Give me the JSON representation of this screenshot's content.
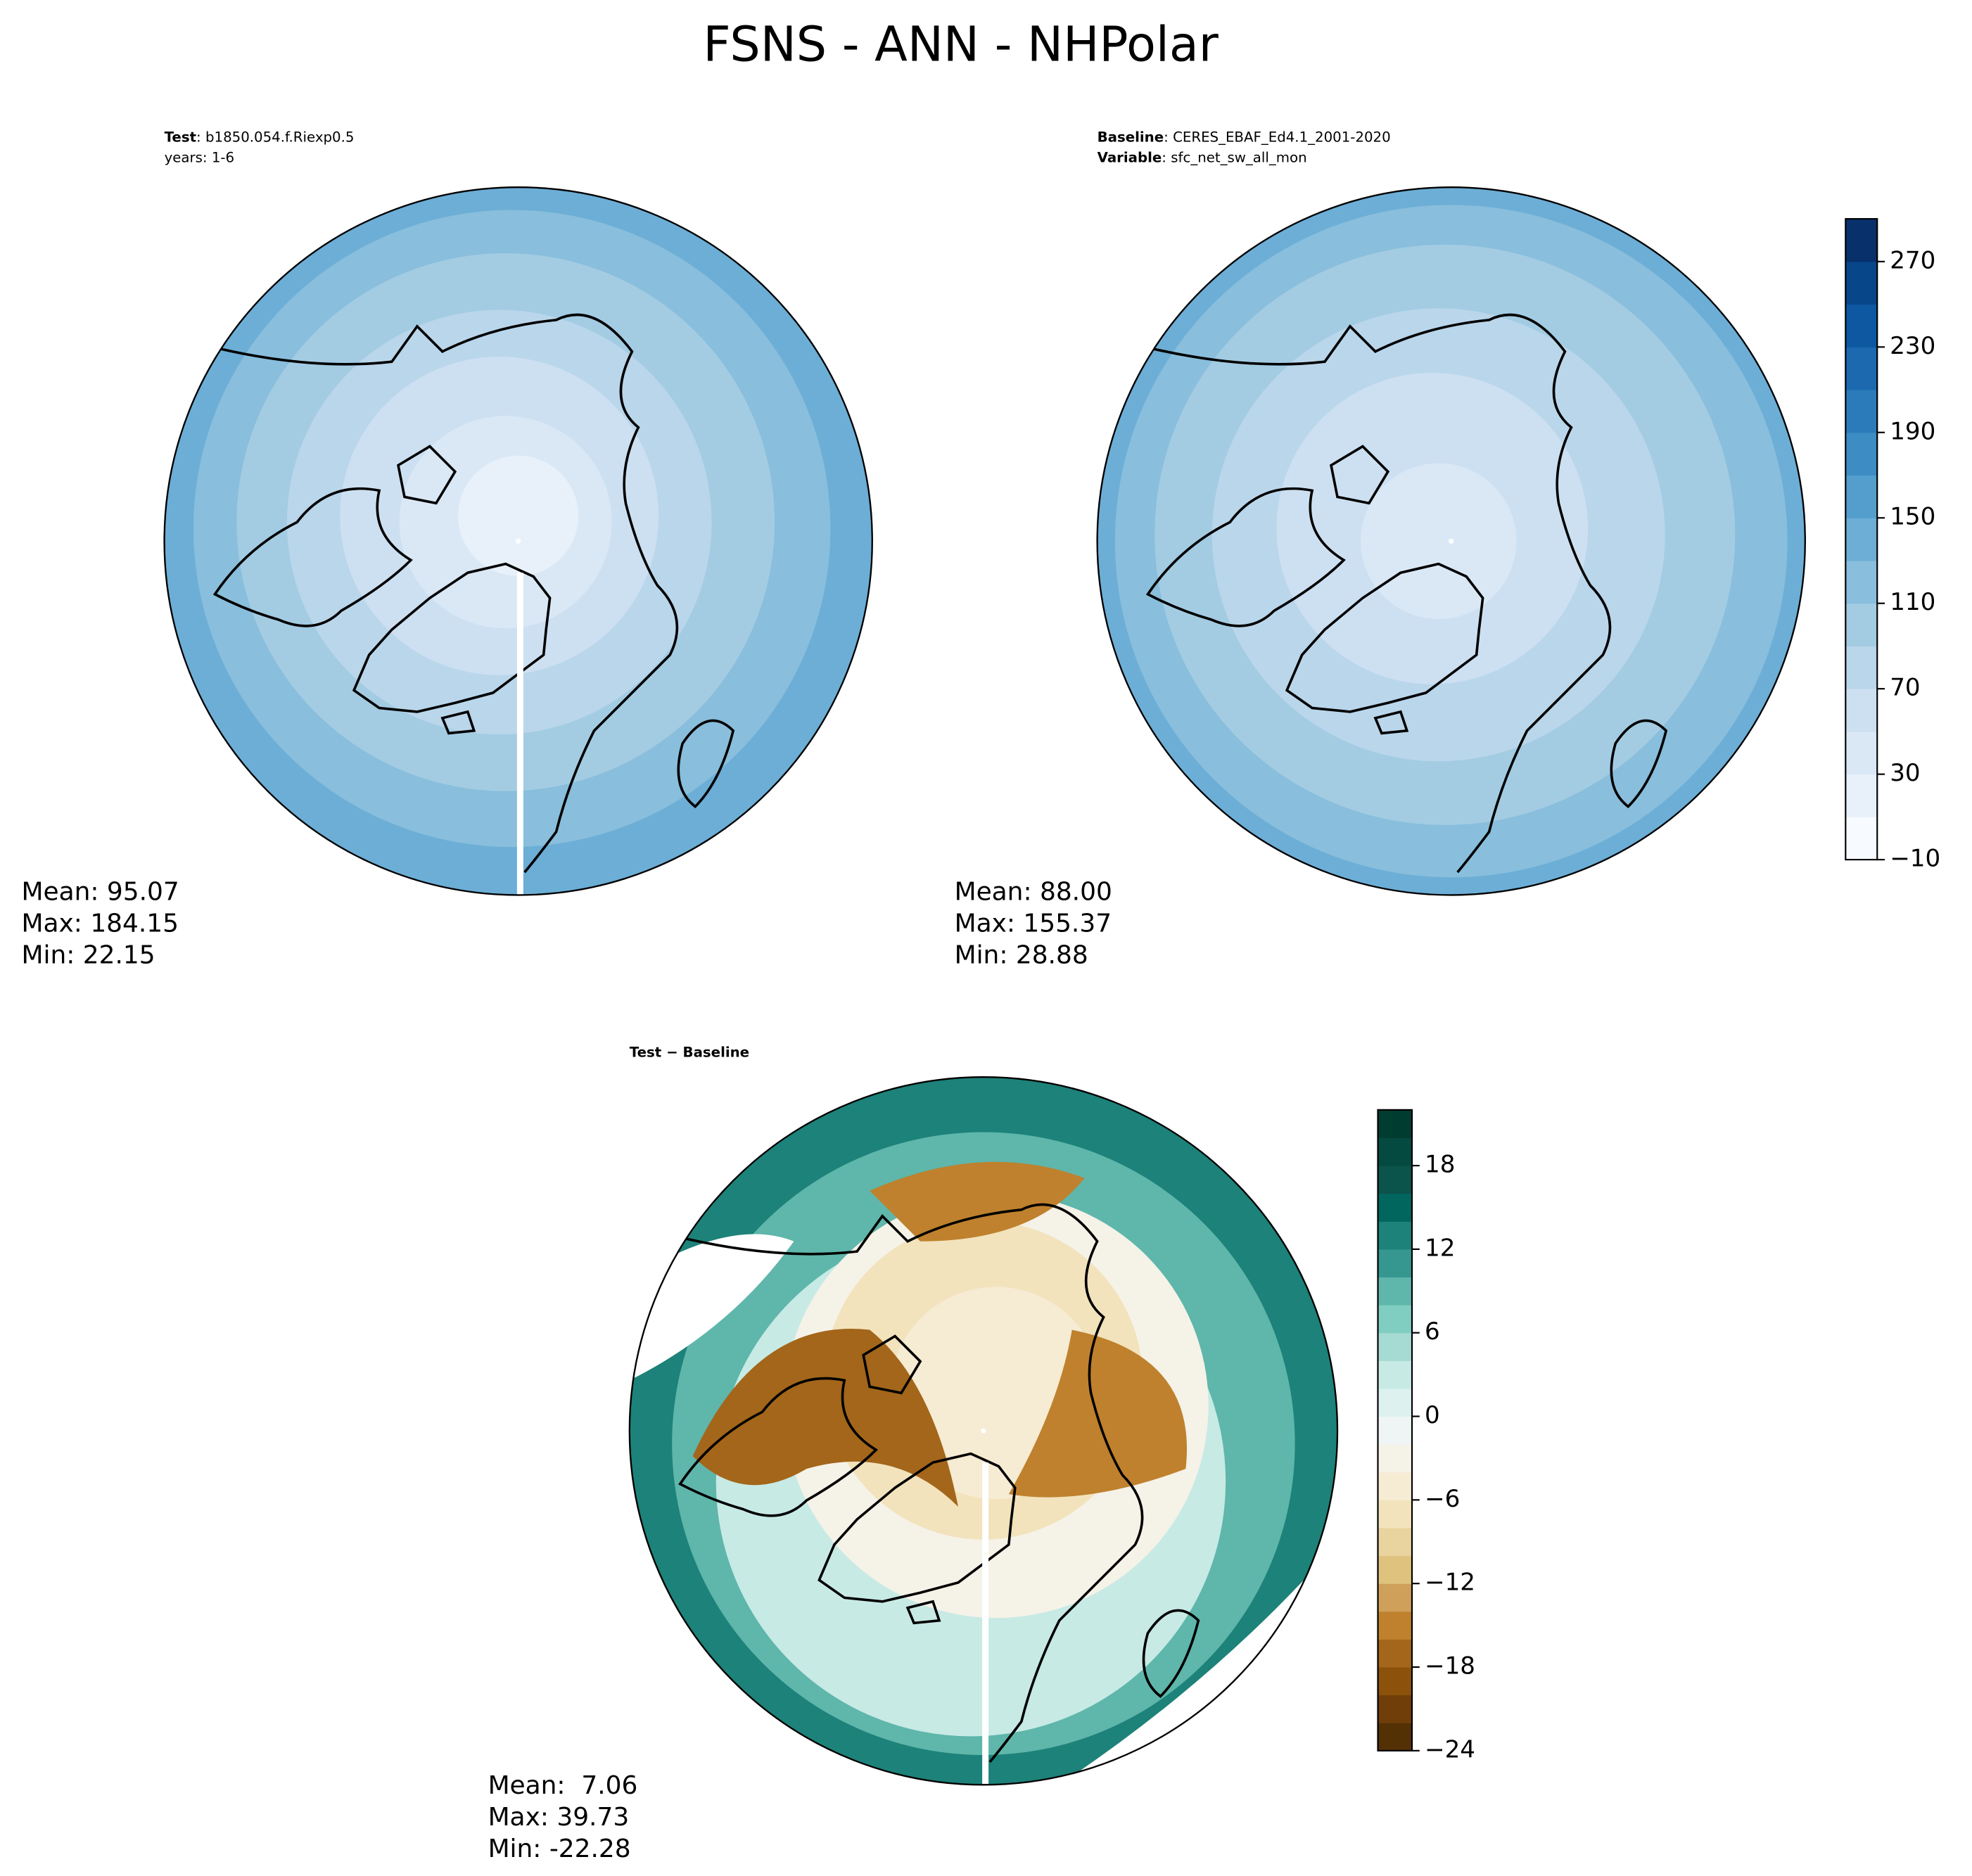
{
  "title": "FSNS - ANN - NHPolar",
  "panels": [
    {
      "header": [
        {
          "key": "Test",
          "value": ": b1850.054.f.Riexp0.5"
        },
        {
          "value": "years: 1-6"
        }
      ],
      "stats": [
        "Mean: 95.07",
        "Max: 184.15",
        "Min: 22.15"
      ]
    },
    {
      "header": [
        {
          "key": "Baseline",
          "value": ": CERES_EBAF_Ed4.1_2001-2020"
        },
        {
          "key": "Variable",
          "value": ": sfc_net_sw_all_mon"
        }
      ],
      "stats": [
        "Mean: 88.00",
        "Max: 155.37",
        "Min: 28.88"
      ]
    },
    {
      "header": [
        {
          "key": "Test − Baseline"
        }
      ],
      "stats": [
        "Mean:  7.06",
        "Max: 39.73",
        "Min: -22.28"
      ]
    }
  ],
  "colorbars": [
    {
      "lim": [
        -10,
        290
      ],
      "ticks": [
        {
          "value": -10,
          "label": "−10"
        },
        30,
        70,
        110,
        150,
        190,
        230,
        270
      ],
      "colors": [
        "#f7fbff",
        "#e8f1fa",
        "#dae8f6",
        "#cde0f1",
        "#bad6eb",
        "#a3cce3",
        "#89bedc",
        "#6caed6",
        "#539ecd",
        "#3d8dc4",
        "#2b7bba",
        "#1c69b0",
        "#0d58a1",
        "#08468a",
        "#08306b"
      ]
    },
    {
      "lim": [
        -24,
        22
      ],
      "ticks": [
        {
          "value": -24,
          "label": "−24"
        },
        {
          "value": -18,
          "label": "−18"
        },
        {
          "value": -12,
          "label": "−12"
        },
        {
          "value": -6,
          "label": "−6"
        },
        0,
        6,
        12,
        18
      ],
      "colors": [
        "#543005",
        "#6f3e09",
        "#8c510a",
        "#a3661a",
        "#bf812d",
        "#cea05a",
        "#dfc27d",
        "#e9d39e",
        "#f2e3bd",
        "#f6ebd3",
        "#f5f2e8",
        "#eef5f4",
        "#ddf1ee",
        "#c7eae5",
        "#a5dbd2",
        "#80cdc1",
        "#5fb6ab",
        "#35978f",
        "#1d8279",
        "#01665e",
        "#0b544b",
        "#044a41",
        "#003c30"
      ]
    }
  ]
}
